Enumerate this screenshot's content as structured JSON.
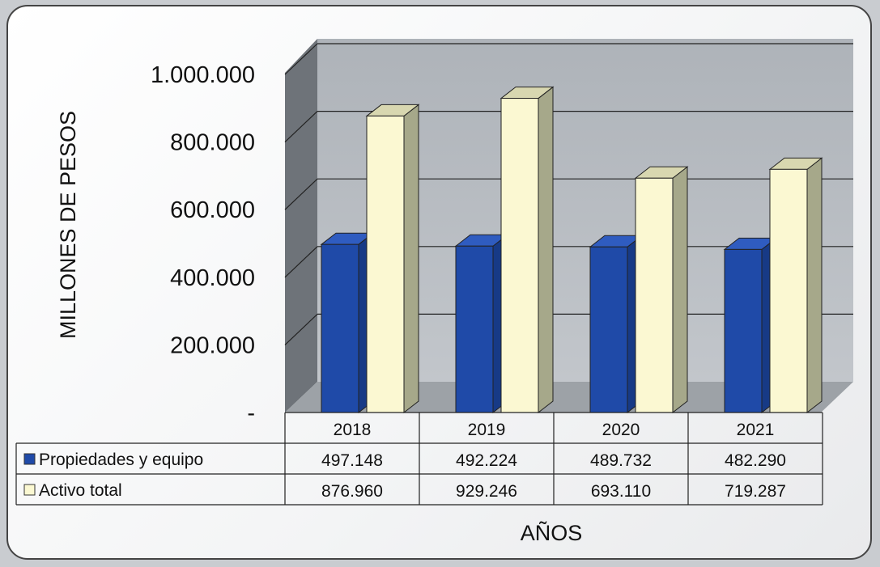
{
  "chart_data": {
    "type": "bar",
    "categories": [
      "2018",
      "2019",
      "2020",
      "2021"
    ],
    "series": [
      {
        "name": "Propiedades y equipo",
        "values": [
          497148,
          492224,
          489732,
          482290
        ],
        "labels": [
          "497.148",
          "492.224",
          "489.732",
          "482.290"
        ],
        "color": "#1f4aa8"
      },
      {
        "name": "Activo total",
        "values": [
          876960,
          929246,
          693110,
          719287
        ],
        "labels": [
          "876.960",
          "929.246",
          "693.110",
          "719.287"
        ],
        "color": "#fbf8d2"
      }
    ],
    "yticks": [
      "-",
      "200.000",
      "400.000",
      "600.000",
      "800.000",
      "1.000.000"
    ],
    "ytick_values": [
      0,
      200000,
      400000,
      600000,
      800000,
      1000000
    ],
    "ylim": [
      0,
      1000000
    ],
    "ylabel": "MILLONES DE PESOS",
    "xlabel": "AÑOS",
    "grid": true,
    "legend": "data-table"
  }
}
